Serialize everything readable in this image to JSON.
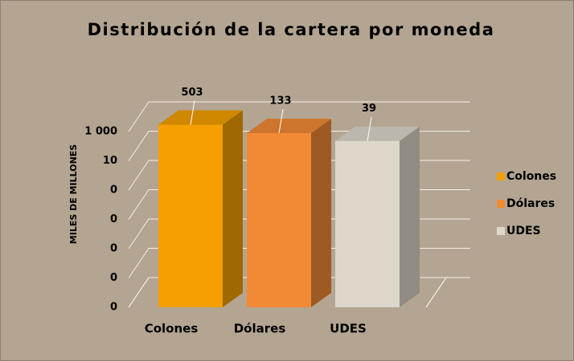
{
  "chart_data": {
    "type": "bar3d",
    "title": "Distribución de la cartera por moneda",
    "ylabel": "MILES DE MILLONES",
    "categories": [
      "Colones",
      "Dólares",
      "UDES"
    ],
    "series": [
      {
        "name": "Colones",
        "color": "#f5a000"
      },
      {
        "name": "Dólares",
        "color": "#f28a35"
      },
      {
        "name": "UDES",
        "color": "#ddd7ca"
      }
    ],
    "values": [
      503,
      133,
      39
    ],
    "log": true,
    "ylim": [
      1e-09,
      1000
    ],
    "yticks": [
      {
        "value": 1e-09,
        "label": "0"
      },
      {
        "value": 1e-07,
        "label": "0"
      },
      {
        "value": 1e-05,
        "label": "0"
      },
      {
        "value": 0.001,
        "label": "0"
      },
      {
        "value": 0.1,
        "label": "0"
      },
      10,
      {
        "value": 1000,
        "label": "1 000"
      }
    ],
    "grid": true,
    "legend": "right"
  }
}
